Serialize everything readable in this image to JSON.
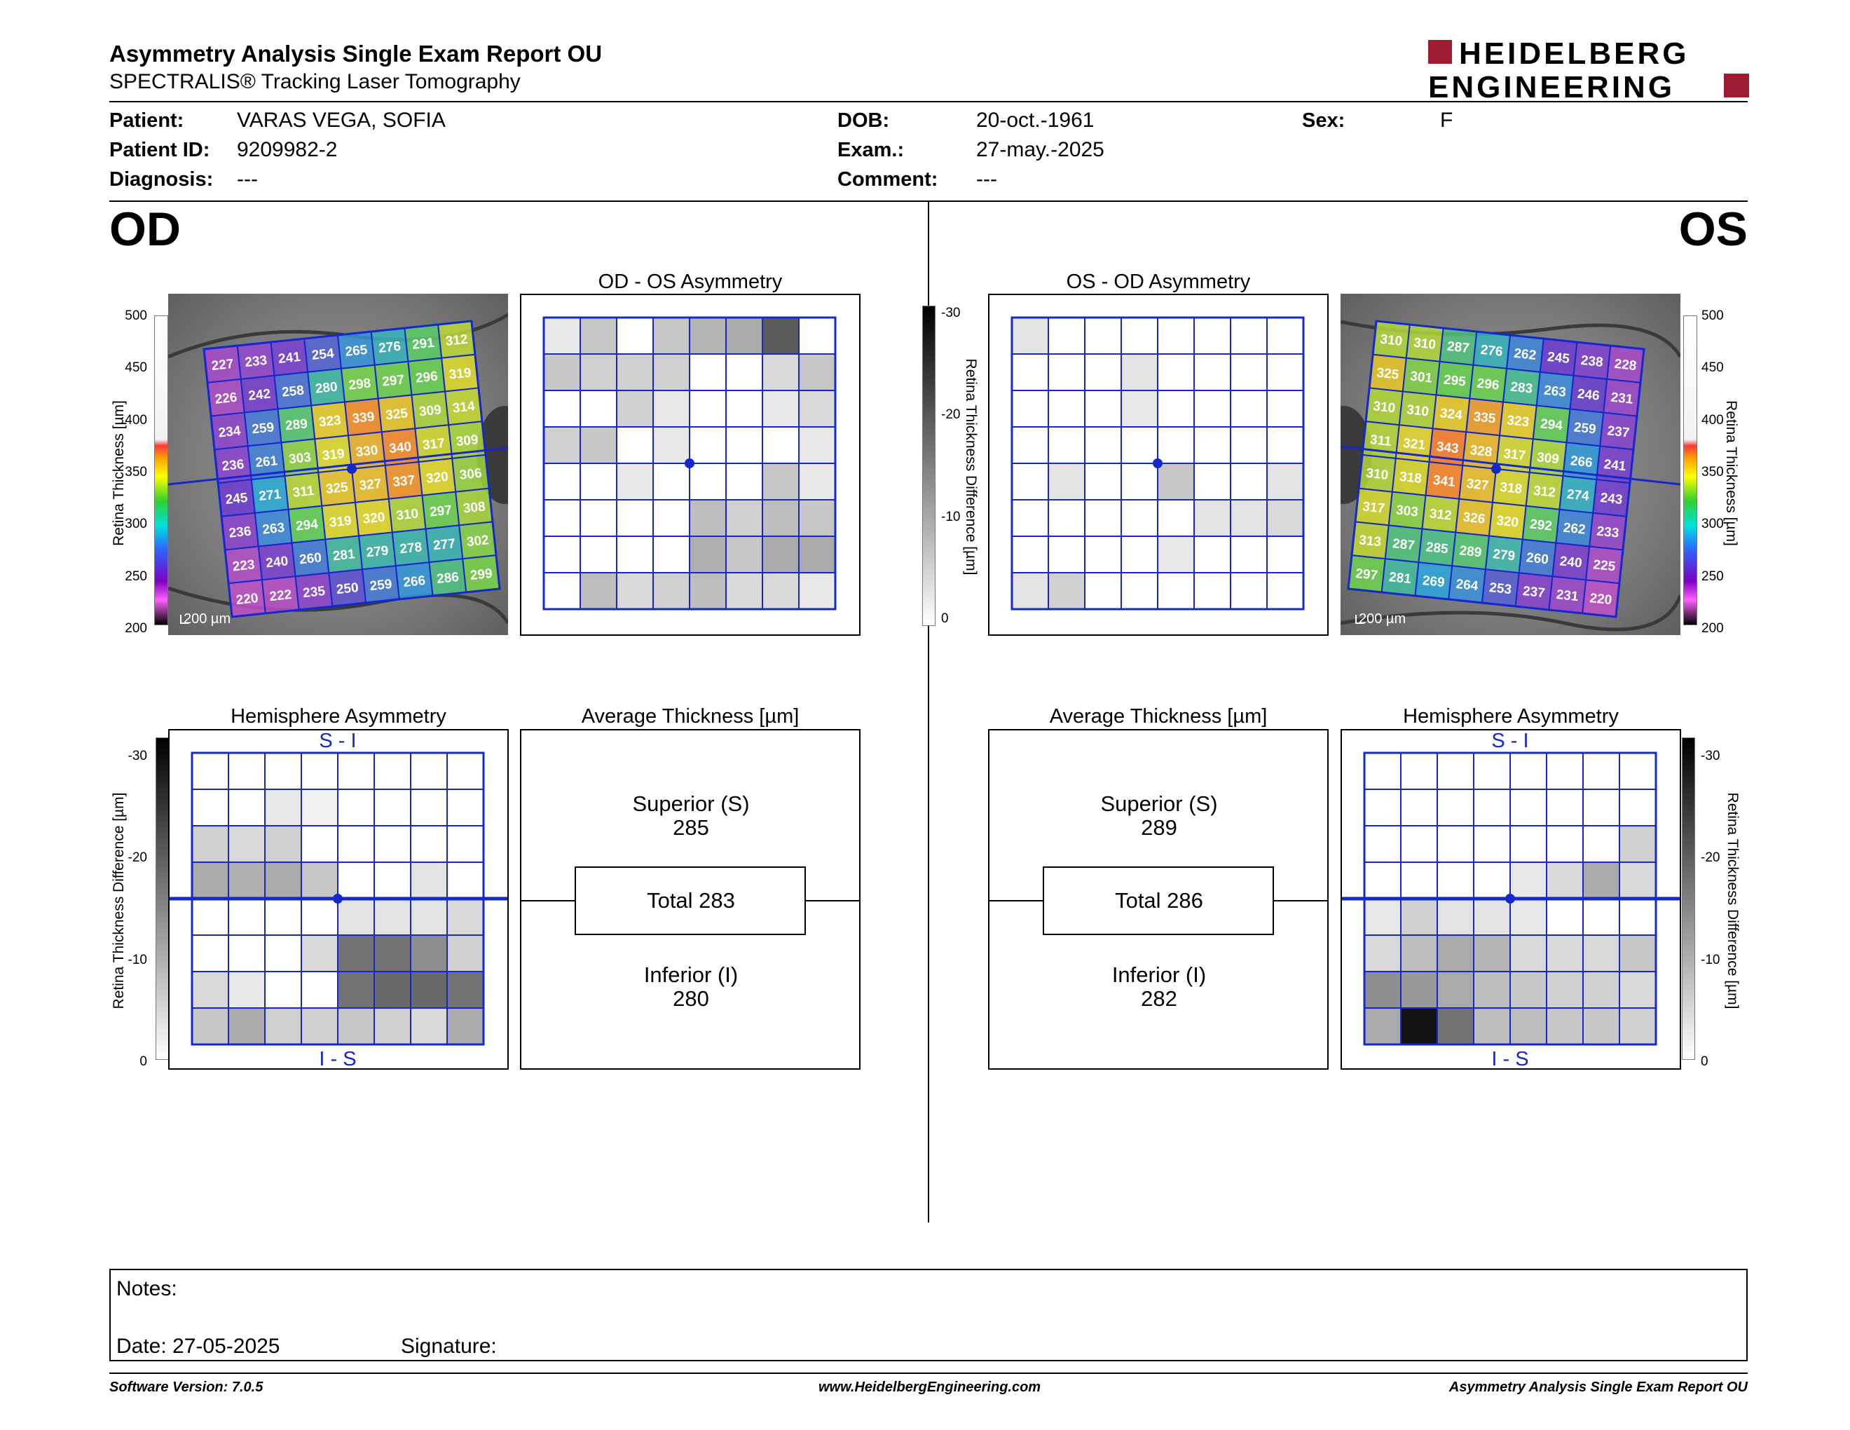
{
  "header": {
    "title": "Asymmetry Analysis Single Exam Report OU",
    "subtitle": "SPECTRALIS® Tracking Laser Tomography",
    "logo_line1": "HEIDELBERG",
    "logo_line2": "ENGINEERING"
  },
  "patient": {
    "patient_label": "Patient:",
    "patient_value": "VARAS VEGA, SOFIA",
    "id_label": "Patient ID:",
    "id_value": "9209982-2",
    "diagnosis_label": "Diagnosis:",
    "diagnosis_value": "---",
    "dob_label": "DOB:",
    "dob_value": "20-oct.-1961",
    "exam_label": "Exam.:",
    "exam_value": "27-may.-2025",
    "comment_label": "Comment:",
    "comment_value": "---",
    "sex_label": "Sex:",
    "sex_value": "F"
  },
  "eyes": {
    "left": "OD",
    "right": "OS"
  },
  "panels": {
    "od_os_title": "OD - OS Asymmetry",
    "os_od_title": "OS - OD Asymmetry",
    "hemi_title": "Hemisphere Asymmetry",
    "avg_title": "Average Thickness [µm]",
    "hemi_top": "S - I",
    "hemi_bottom": "I - S",
    "scale_bar": "200 µm"
  },
  "scales": {
    "thickness_label": "Retina  Thickness [µm]",
    "thickness_ticks": [
      "500",
      "450",
      "400",
      "350",
      "300",
      "250",
      "200"
    ],
    "diff_label": "Retina Thickness Difference [µm]",
    "diff_ticks": [
      "-30",
      "-20",
      "-10",
      "0"
    ]
  },
  "od_average": {
    "sup_label": "Superior (S)",
    "sup": "285",
    "total": "Total 283",
    "inf_label": "Inferior (I)",
    "inf": "280"
  },
  "os_average": {
    "sup_label": "Superior (S)",
    "sup": "289",
    "total": "Total 286",
    "inf_label": "Inferior (I)",
    "inf": "282"
  },
  "od_thickness_grid": [
    [
      "227",
      "233",
      "241",
      "254",
      "265",
      "276",
      "291",
      "312"
    ],
    [
      "226",
      "242",
      "258",
      "280",
      "298",
      "297",
      "296",
      "319"
    ],
    [
      "234",
      "259",
      "289",
      "323",
      "339",
      "325",
      "309",
      "314"
    ],
    [
      "236",
      "261",
      "303",
      "319",
      "330",
      "340",
      "317",
      "309"
    ],
    [
      "245",
      "271",
      "311",
      "325",
      "327",
      "337",
      "320",
      "306"
    ],
    [
      "236",
      "263",
      "294",
      "319",
      "320",
      "310",
      "297",
      "308"
    ],
    [
      "223",
      "240",
      "260",
      "281",
      "279",
      "278",
      "277",
      "302"
    ],
    [
      "220",
      "222",
      "235",
      "250",
      "259",
      "266",
      "286",
      "299"
    ]
  ],
  "os_thickness_grid": [
    [
      "310",
      "310",
      "287",
      "276",
      "262",
      "245",
      "238",
      "228"
    ],
    [
      "325",
      "301",
      "295",
      "296",
      "283",
      "263",
      "246",
      "231"
    ],
    [
      "310",
      "310",
      "324",
      "335",
      "323",
      "294",
      "259",
      "237"
    ],
    [
      "311",
      "321",
      "343",
      "328",
      "317",
      "309",
      "266",
      "241"
    ],
    [
      "310",
      "318",
      "341",
      "327",
      "318",
      "312",
      "274",
      "243"
    ],
    [
      "317",
      "303",
      "312",
      "326",
      "320",
      "292",
      "262",
      "233"
    ],
    [
      "313",
      "287",
      "285",
      "289",
      "279",
      "260",
      "240",
      "225"
    ],
    [
      "297",
      "281",
      "269",
      "264",
      "253",
      "237",
      "231",
      "220"
    ]
  ],
  "od_asym_grid": [
    [
      5,
      12,
      0,
      12,
      16,
      18,
      35,
      0
    ],
    [
      12,
      10,
      10,
      10,
      0,
      0,
      8,
      12
    ],
    [
      0,
      0,
      10,
      5,
      0,
      0,
      5,
      8
    ],
    [
      10,
      12,
      0,
      5,
      0,
      0,
      0,
      5
    ],
    [
      0,
      0,
      5,
      0,
      0,
      0,
      12,
      5
    ],
    [
      0,
      0,
      0,
      0,
      14,
      10,
      14,
      12
    ],
    [
      0,
      0,
      0,
      0,
      17,
      12,
      18,
      18
    ],
    [
      0,
      14,
      8,
      10,
      14,
      8,
      8,
      5
    ]
  ],
  "os_asym_grid": [
    [
      6,
      0,
      0,
      0,
      0,
      0,
      0,
      0
    ],
    [
      0,
      0,
      0,
      6,
      0,
      0,
      0,
      0
    ],
    [
      0,
      0,
      0,
      5,
      0,
      0,
      0,
      0
    ],
    [
      0,
      0,
      0,
      0,
      0,
      0,
      0,
      0
    ],
    [
      0,
      6,
      0,
      0,
      12,
      0,
      0,
      6
    ],
    [
      0,
      0,
      0,
      0,
      0,
      6,
      6,
      8
    ],
    [
      0,
      0,
      0,
      0,
      5,
      0,
      0,
      0
    ],
    [
      6,
      10,
      0,
      0,
      0,
      0,
      0,
      0
    ]
  ],
  "od_hemi_grid": [
    [
      0,
      0,
      0,
      0,
      0,
      0,
      0,
      0
    ],
    [
      0,
      0,
      5,
      3,
      0,
      0,
      0,
      0
    ],
    [
      10,
      8,
      10,
      0,
      0,
      0,
      0,
      0
    ],
    [
      18,
      17,
      18,
      12,
      0,
      0,
      6,
      0
    ],
    [
      0,
      0,
      0,
      0,
      6,
      6,
      6,
      8
    ],
    [
      0,
      0,
      0,
      8,
      30,
      30,
      24,
      10
    ],
    [
      8,
      5,
      0,
      0,
      30,
      32,
      32,
      30
    ],
    [
      12,
      18,
      10,
      10,
      12,
      10,
      8,
      18
    ]
  ],
  "os_hemi_grid": [
    [
      0,
      0,
      0,
      0,
      0,
      0,
      0,
      0
    ],
    [
      0,
      0,
      0,
      0,
      0,
      0,
      0,
      0
    ],
    [
      0,
      0,
      0,
      0,
      0,
      0,
      0,
      10
    ],
    [
      0,
      0,
      0,
      0,
      5,
      8,
      18,
      8
    ],
    [
      5,
      10,
      6,
      6,
      5,
      0,
      0,
      0
    ],
    [
      8,
      14,
      18,
      16,
      8,
      8,
      8,
      12
    ],
    [
      24,
      22,
      18,
      14,
      12,
      10,
      10,
      8
    ],
    [
      18,
      50,
      30,
      14,
      14,
      12,
      12,
      10
    ]
  ],
  "notes": {
    "notes_label": "Notes:",
    "date_label": "Date: 27-05-2025",
    "signature_label": "Signature:"
  },
  "footer": {
    "version": "Software Version: 7.0.5",
    "website": "www.HeidelbergEngineering.com",
    "report": "Asymmetry Analysis Single Exam Report OU"
  },
  "colors": {
    "grid_blue": "#1428cc",
    "logo_red": "#9e1b32"
  }
}
